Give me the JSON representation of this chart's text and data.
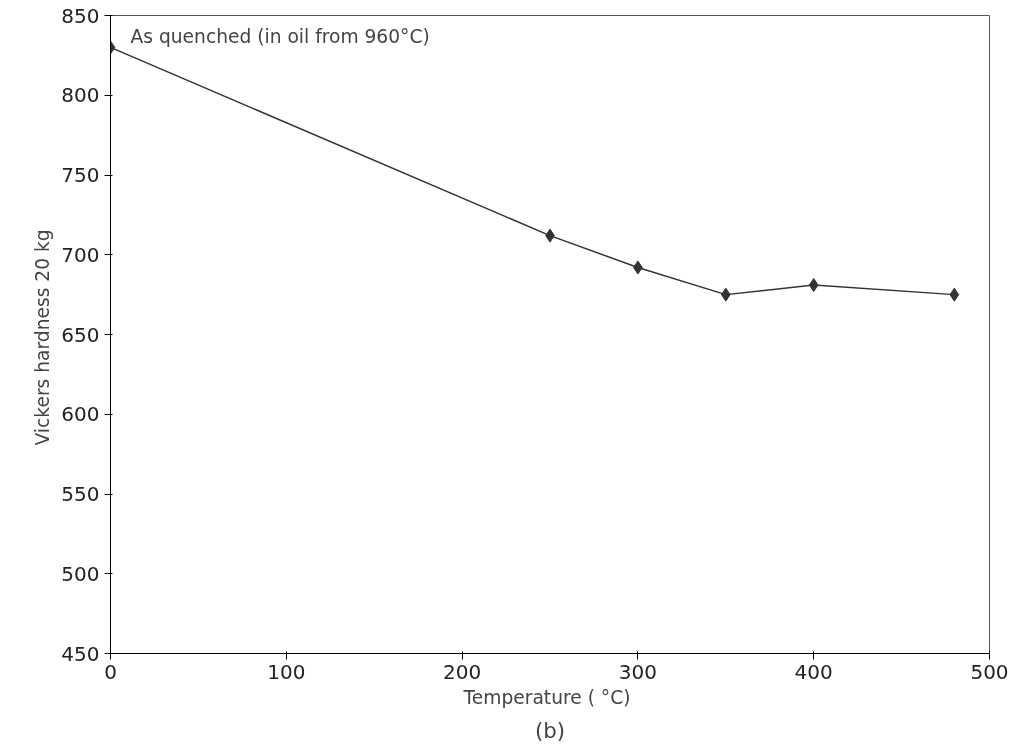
{
  "chart_data": {
    "type": "line",
    "xlabel": "Temperature  ( °C)",
    "ylabel": "Vickers hardness  20 kg",
    "x": [
      0,
      250,
      300,
      350,
      400,
      480
    ],
    "series": [
      {
        "color": "#333333",
        "values": [
          830,
          712,
          692,
          675,
          681,
          675
        ]
      }
    ],
    "xlim": [
      0,
      500
    ],
    "xticks": [
      0,
      100,
      200,
      300,
      400,
      500
    ],
    "ylim": [
      450,
      850
    ],
    "yticks": [
      450,
      500,
      550,
      600,
      650,
      700,
      750,
      800,
      850
    ],
    "grid": false,
    "marker": "diamond",
    "line_style": "solid",
    "annotations": [
      {
        "text": "As quenched (in oil from 960°C)",
        "x": 0,
        "y": 830
      },
      "(b)"
    ]
  }
}
